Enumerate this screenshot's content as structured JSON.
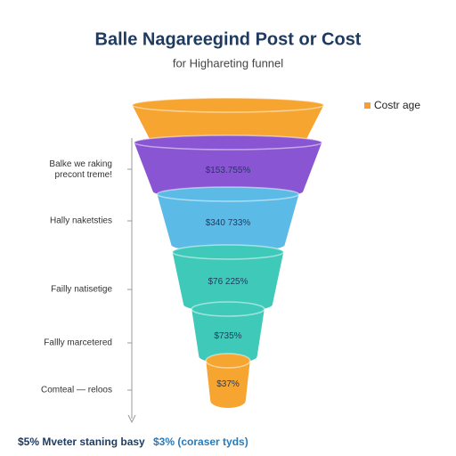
{
  "chart_data": {
    "type": "funnel",
    "title": "Balle Nagareegind Post or Cost",
    "subtitle": "for Highareting funnel",
    "legend": {
      "label": "Costr age",
      "color": "#f5a030",
      "position": "top-right"
    },
    "categories": [
      null,
      "Balke we raking precont treme!",
      "Hally naketsties",
      "Failly natisetige",
      "Fallly marcetered",
      "Comteal — reloos"
    ],
    "values": [
      100,
      98,
      74,
      58,
      38,
      23
    ],
    "annotations": [
      null,
      "$153.755%",
      "$340 733%",
      "$76 225%",
      "$735%",
      "$37%"
    ],
    "colors": [
      "#f7a531",
      "#8a55d2",
      "#5bbbe6",
      "#3fc9b8",
      "#3fc9b8",
      "#f7a531"
    ],
    "footer": [
      "$5% Mveter staning basy",
      "$3% (coraser tyds)"
    ]
  }
}
